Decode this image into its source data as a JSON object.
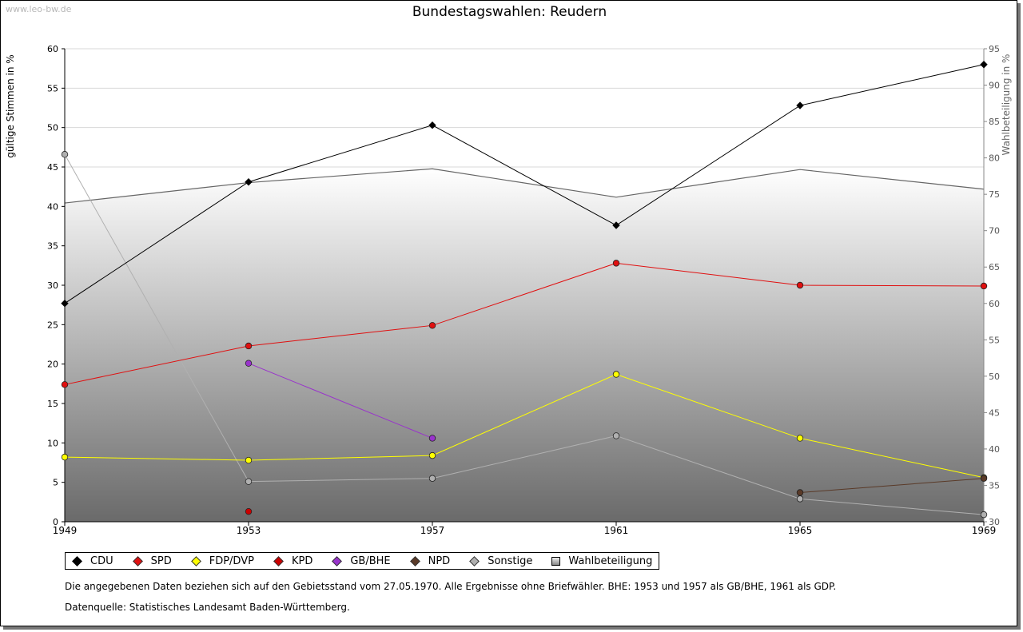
{
  "watermark": "www.leo-bw.de",
  "colors": {
    "CDU": "#000000",
    "SPD": "#e01010",
    "FDP/DVP": "#ffff00",
    "KPD": "#cc0000",
    "GB/BHE": "#9933cc",
    "NPD": "#5a3a28",
    "Sonstige": "#b0b0b0",
    "Wahlbeteiligung": "#666666"
  },
  "notes": {
    "line1": "Die angegebenen Daten beziehen sich auf den Gebietsstand vom 27.05.1970. Alle Ergebnisse ohne Briefwähler. BHE: 1953 und 1957 als GB/BHE, 1961 als GDP.",
    "line2": "Datenquelle: Statistisches Landesamt Baden-Württemberg."
  },
  "chart_data": {
    "type": "line",
    "title": "Bundestagswahlen: Reudern",
    "ylabel": "gültige Stimmen in %",
    "y2label": "Wahlbeteiligung in %",
    "categories": [
      "1949",
      "1953",
      "1957",
      "1961",
      "1965",
      "1969"
    ],
    "ylim": [
      0,
      60
    ],
    "yticks": [
      "0",
      "5",
      "10",
      "15",
      "20",
      "25",
      "30",
      "35",
      "40",
      "45",
      "50",
      "55",
      "60"
    ],
    "y2lim": [
      30,
      95
    ],
    "y2ticks": [
      "30",
      "35",
      "40",
      "45",
      "50",
      "55",
      "60",
      "65",
      "70",
      "75",
      "80",
      "85",
      "90",
      "95"
    ],
    "legend_position": "bottom",
    "series": [
      {
        "name": "CDU",
        "values": [
          27.7,
          43.1,
          50.3,
          37.6,
          52.8,
          58.0
        ]
      },
      {
        "name": "SPD",
        "values": [
          17.4,
          22.3,
          24.9,
          32.8,
          30.0,
          29.9
        ]
      },
      {
        "name": "FDP/DVP",
        "values": [
          8.2,
          7.8,
          8.4,
          18.7,
          10.6,
          5.6
        ]
      },
      {
        "name": "KPD",
        "values": [
          null,
          1.3,
          null,
          null,
          null,
          null
        ]
      },
      {
        "name": "GB/BHE",
        "values": [
          null,
          20.1,
          10.6,
          null,
          null,
          null
        ]
      },
      {
        "name": "NPD",
        "values": [
          null,
          null,
          null,
          null,
          3.7,
          5.5
        ]
      },
      {
        "name": "Sonstige",
        "values": [
          46.6,
          5.1,
          5.5,
          10.9,
          2.9,
          0.9
        ]
      }
    ],
    "turnout": {
      "name": "Wahlbeteiligung",
      "values": [
        73.8,
        76.6,
        78.5,
        74.6,
        78.4,
        75.7
      ]
    }
  }
}
